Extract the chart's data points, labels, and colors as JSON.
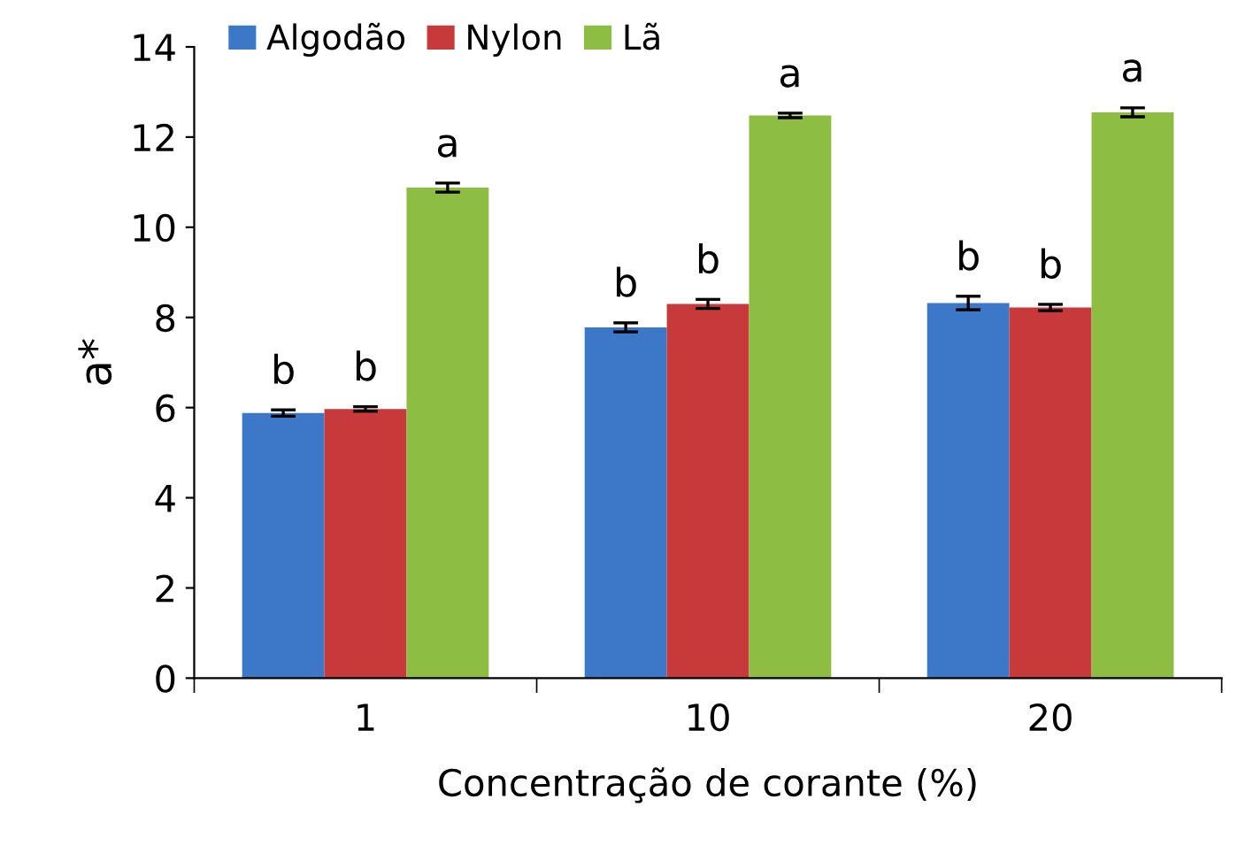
{
  "chart_data": {
    "type": "bar",
    "xlabel": "Concentração de corante (%)",
    "ylabel": "a*",
    "categories": [
      "1",
      "10",
      "20"
    ],
    "series": [
      {
        "name": "Algodão",
        "color": "#3d78c8",
        "values": [
          5.88,
          7.78,
          8.32
        ],
        "errors": [
          0.07,
          0.1,
          0.15
        ],
        "value_labels": [
          "b",
          "b",
          "b"
        ]
      },
      {
        "name": "Nylon",
        "color": "#c8393b",
        "values": [
          5.97,
          8.3,
          8.22
        ],
        "errors": [
          0.05,
          0.1,
          0.07
        ],
        "value_labels": [
          "b",
          "b",
          "b"
        ]
      },
      {
        "name": "Lã",
        "color": "#8ebd44",
        "values": [
          10.88,
          12.48,
          12.55
        ],
        "errors": [
          0.1,
          0.05,
          0.1
        ],
        "value_labels": [
          "a",
          "a",
          "a"
        ]
      }
    ],
    "ylim": [
      0,
      14
    ],
    "yticks": [
      0,
      2,
      4,
      6,
      8,
      10,
      12,
      14
    ],
    "grid": false,
    "legend": "top left"
  }
}
